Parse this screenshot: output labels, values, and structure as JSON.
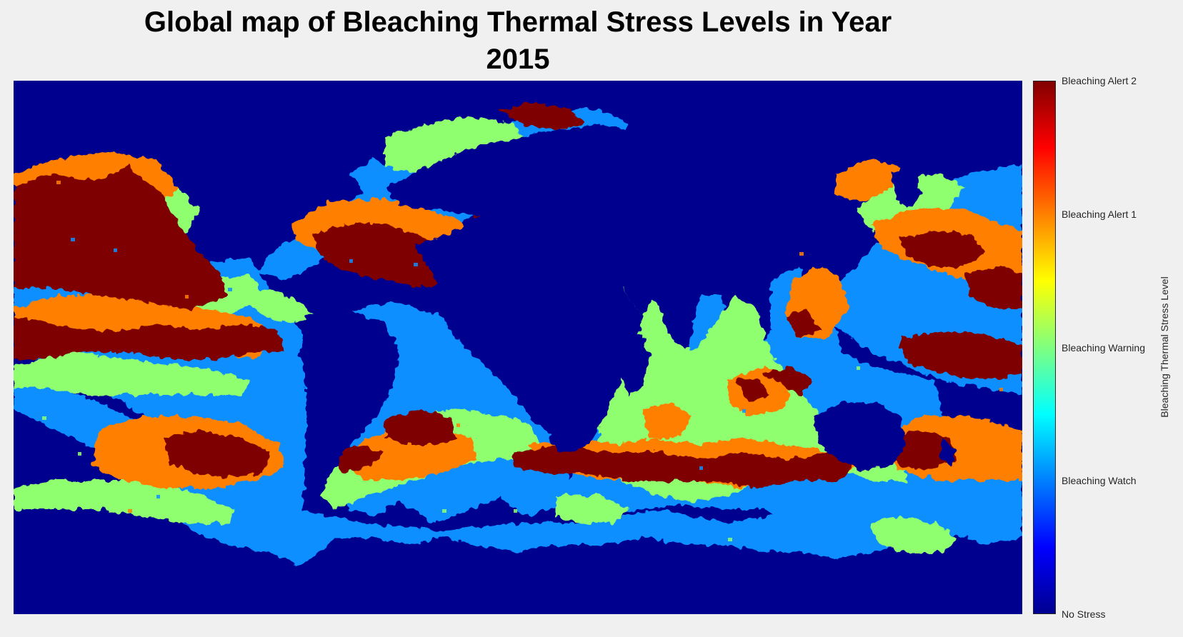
{
  "figure": {
    "title_line1": "Global map of Bleaching Thermal Stress Levels in Year",
    "title_line2": "2015"
  },
  "colorbar": {
    "label": "Bleaching Thermal Stress Level",
    "colormap": "jet",
    "range": [
      0,
      4
    ],
    "ticks": [
      {
        "value": 4,
        "label": "Bleaching Alert 2"
      },
      {
        "value": 3,
        "label": "Bleaching Alert 1"
      },
      {
        "value": 2,
        "label": "Bleaching Warning"
      },
      {
        "value": 1,
        "label": "Bleaching Watch"
      },
      {
        "value": 0,
        "label": "No Stress"
      }
    ]
  },
  "map": {
    "land_and_no_stress_color": "#00008f",
    "level_colors": {
      "watch": "#0f8fff",
      "warning": "#8fff6f",
      "alert1": "#ff7f00",
      "alert2": "#7f0000"
    }
  }
}
